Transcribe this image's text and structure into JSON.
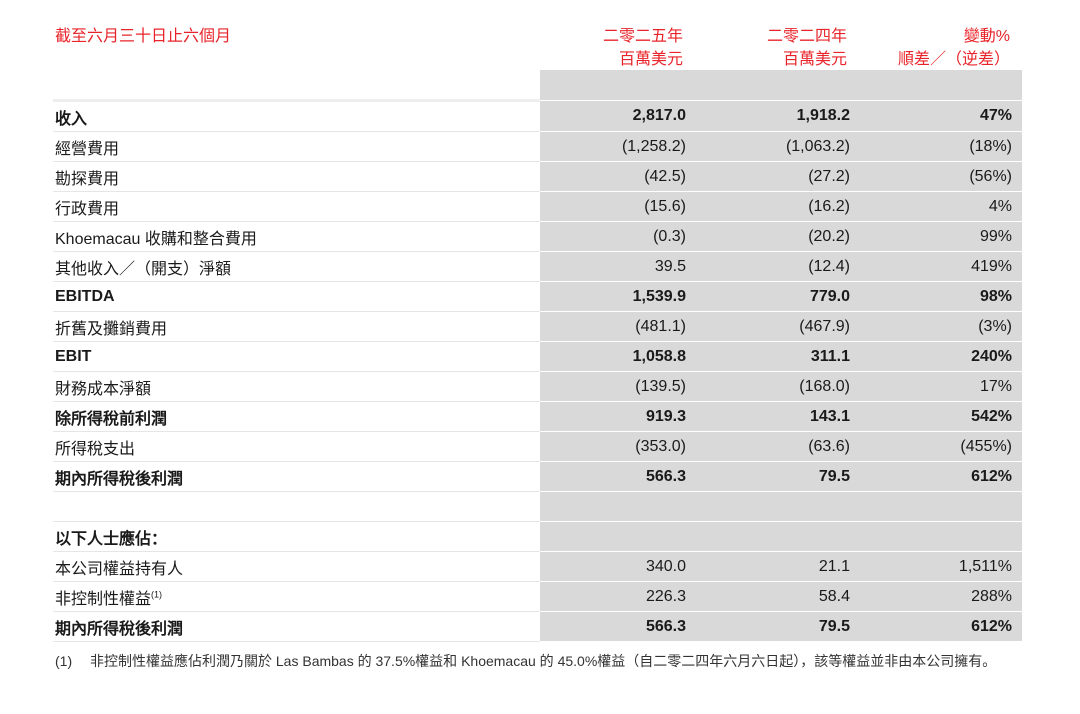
{
  "header": {
    "period": "截至六月三十日止六個月",
    "col1": [
      "二零二五年",
      "百萬美元"
    ],
    "col2": [
      "二零二四年",
      "百萬美元"
    ],
    "col3": [
      "變動%",
      "順差／（逆差）"
    ],
    "color": "#e8242a"
  },
  "rows": [
    {
      "label": "收入",
      "v1": "2,817.0",
      "v2": "1,918.2",
      "v3": "47%",
      "bold": true
    },
    {
      "label": "經營費用",
      "v1": "(1,258.2)",
      "v2": "(1,063.2)",
      "v3": "(18%)"
    },
    {
      "label": "勘探費用",
      "v1": "(42.5)",
      "v2": "(27.2)",
      "v3": "(56%)"
    },
    {
      "label": "行政費用",
      "v1": "(15.6)",
      "v2": "(16.2)",
      "v3": "4%"
    },
    {
      "label": "Khoemacau 收購和整合費用",
      "v1": "(0.3)",
      "v2": "(20.2)",
      "v3": "99%"
    },
    {
      "label": "其他收入／（開支）淨額",
      "v1": "39.5",
      "v2": "(12.4)",
      "v3": "419%"
    },
    {
      "label": "EBITDA",
      "v1": "1,539.9",
      "v2": "779.0",
      "v3": "98%",
      "bold": true
    },
    {
      "label": "折舊及攤銷費用",
      "v1": "(481.1)",
      "v2": "(467.9)",
      "v3": "(3%)"
    },
    {
      "label": "EBIT",
      "v1": "1,058.8",
      "v2": "311.1",
      "v3": "240%",
      "bold": true
    },
    {
      "label": "財務成本淨額",
      "v1": "(139.5)",
      "v2": "(168.0)",
      "v3": "17%"
    },
    {
      "label": "除所得稅前利潤",
      "v1": "919.3",
      "v2": "143.1",
      "v3": "542%",
      "bold": true
    },
    {
      "label": "所得稅支出",
      "v1": "(353.0)",
      "v2": "(63.6)",
      "v3": "(455%)"
    },
    {
      "label": "期內所得稅後利潤",
      "v1": "566.3",
      "v2": "79.5",
      "v3": "612%",
      "bold": true
    },
    {
      "label": "",
      "v1": "",
      "v2": "",
      "v3": ""
    },
    {
      "label": "以下人士應佔：",
      "v1": "",
      "v2": "",
      "v3": "",
      "bold": true
    },
    {
      "label": "本公司權益持有人",
      "v1": "340.0",
      "v2": "21.1",
      "v3": "1,511%"
    },
    {
      "label": "非控制性權益",
      "sup": "(1)",
      "v1": "226.3",
      "v2": "58.4",
      "v3": "288%"
    },
    {
      "label": "期內所得稅後利潤",
      "v1": "566.3",
      "v2": "79.5",
      "v3": "612%",
      "bold": true
    }
  ],
  "footnote": {
    "marker": "(1)",
    "text": "非控制性權益應佔利潤乃關於 Las Bambas 的 37.5%權益和 Khoemacau 的 45.0%權益（自二零二四年六月六日起），該等權益並非由本公司擁有。"
  }
}
